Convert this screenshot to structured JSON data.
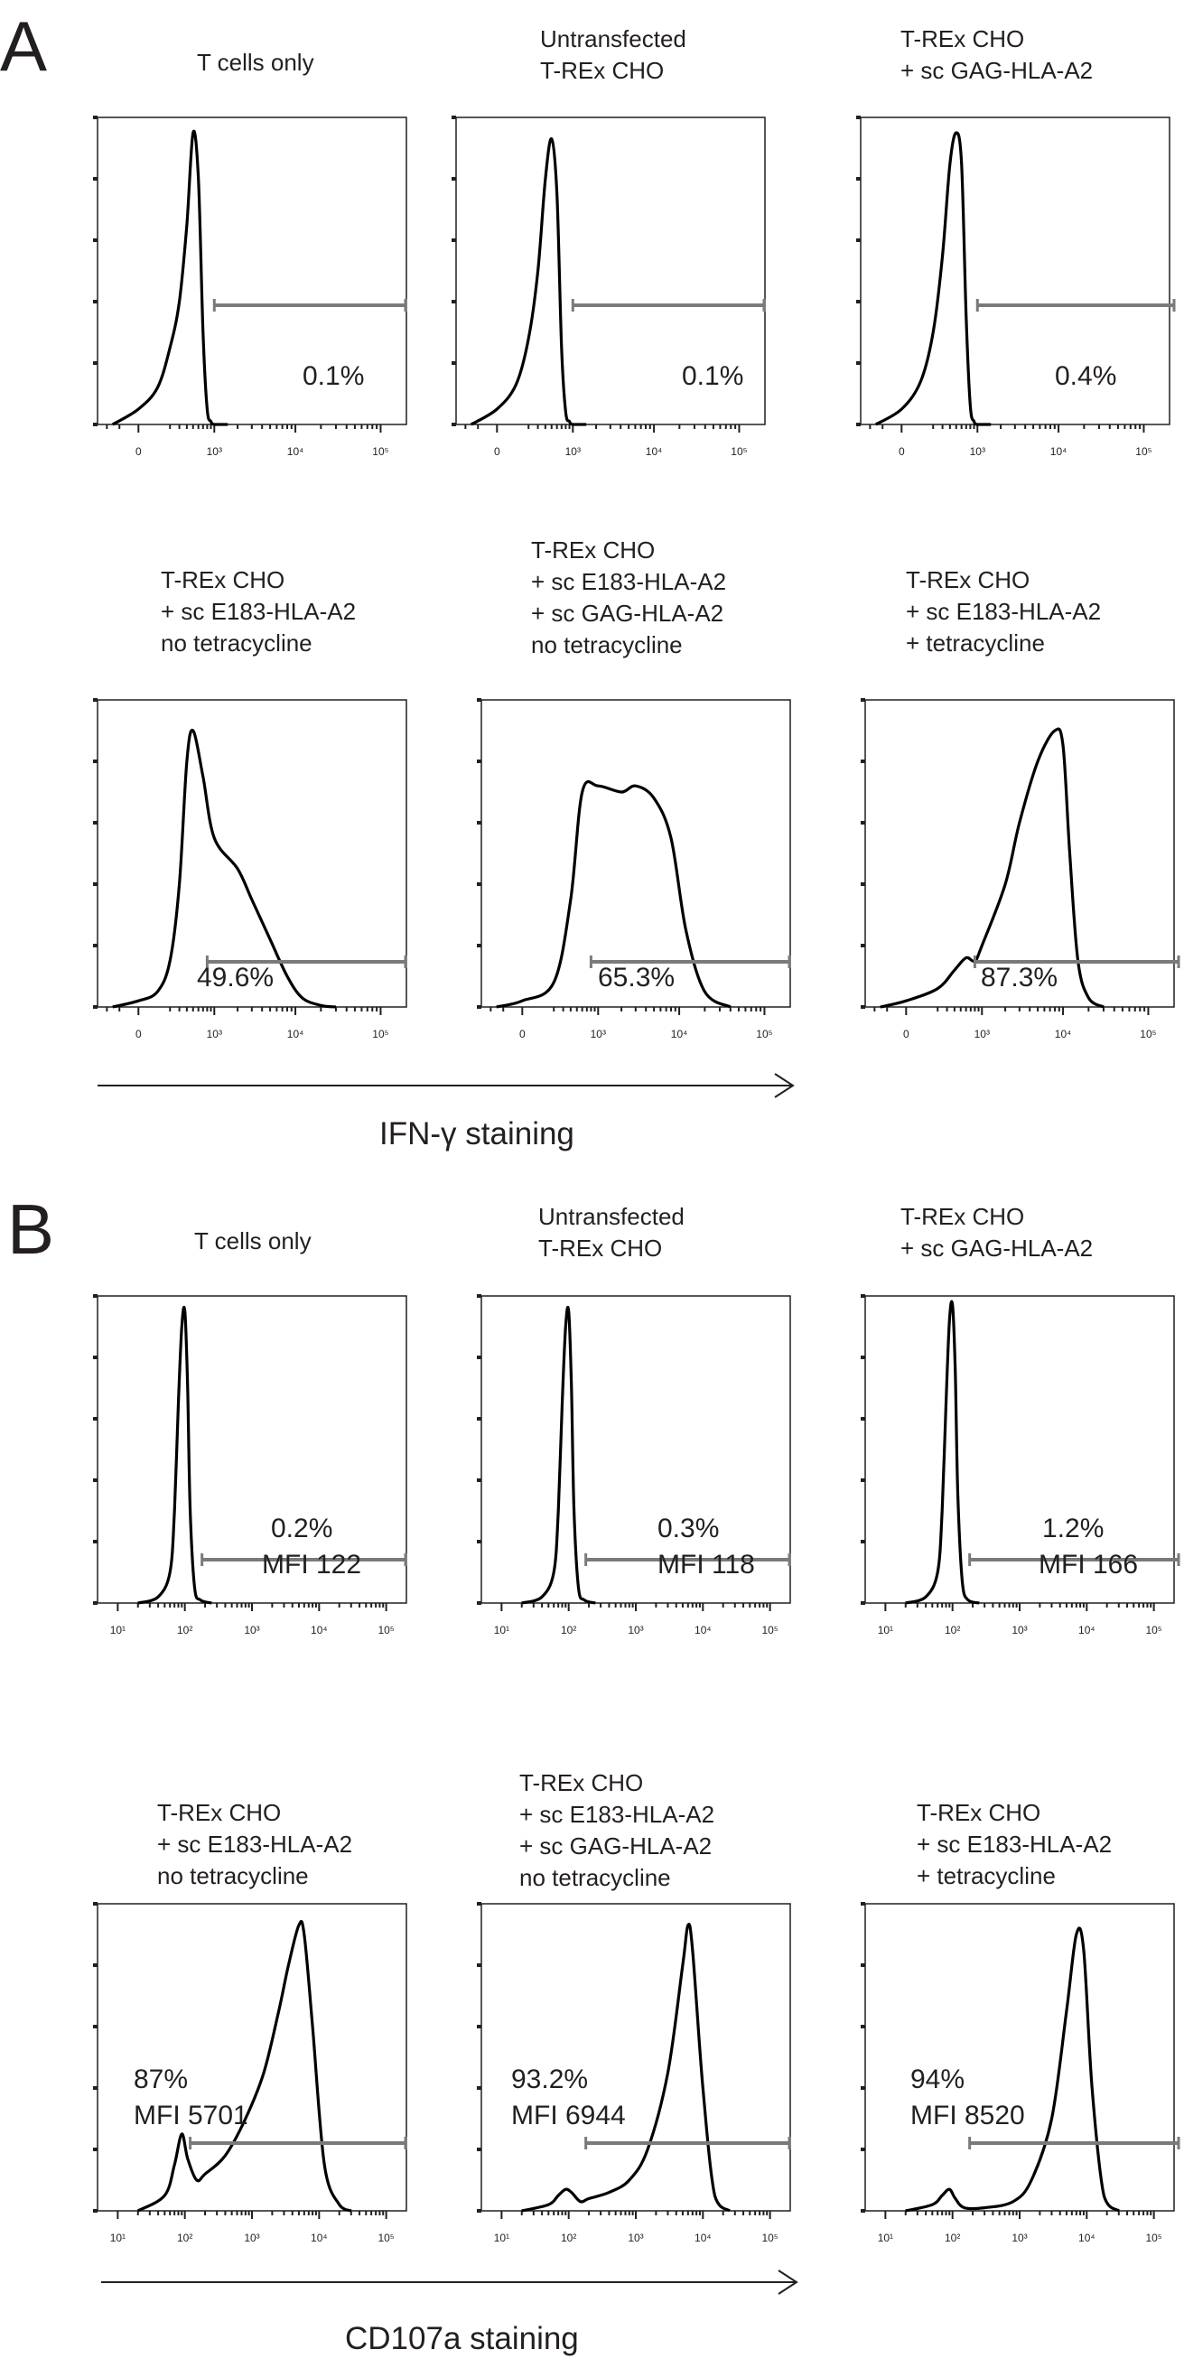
{
  "panels": [
    {
      "letter": "A",
      "axis_label": "IFN-γ staining",
      "x_ticks": [
        "0",
        "10³",
        "10⁴",
        "10⁵"
      ],
      "plots": [
        {
          "title": [
            "T cells only"
          ],
          "stats": [
            "0.1%"
          ]
        },
        {
          "title": [
            "Untransfected",
            "T-REx CHO"
          ],
          "stats": [
            "0.1%"
          ]
        },
        {
          "title": [
            "T-REx CHO",
            "+ sc GAG-HLA-A2"
          ],
          "stats": [
            "0.4%"
          ]
        },
        {
          "title": [
            "T-REx CHO",
            "+ sc E183-HLA-A2",
            "no tetracycline"
          ],
          "stats": [
            "49.6%"
          ]
        },
        {
          "title": [
            "T-REx CHO",
            "+ sc E183-HLA-A2",
            "+ sc GAG-HLA-A2",
            "no tetracycline"
          ],
          "stats": [
            "65.3%"
          ]
        },
        {
          "title": [
            "T-REx CHO",
            "+ sc E183-HLA-A2",
            "+ tetracycline"
          ],
          "stats": [
            "87.3%"
          ]
        }
      ]
    },
    {
      "letter": "B",
      "axis_label": "CD107a staining",
      "x_ticks": [
        "10¹",
        "10²",
        "10³",
        "10⁴",
        "10⁵"
      ],
      "plots": [
        {
          "title": [
            "T cells only"
          ],
          "stats": [
            "0.2%",
            "MFI 122"
          ]
        },
        {
          "title": [
            "Untransfected",
            "T-REx CHO"
          ],
          "stats": [
            "0.3%",
            "MFI 118"
          ]
        },
        {
          "title": [
            "T-REx CHO",
            "+ sc GAG-HLA-A2"
          ],
          "stats": [
            "1.2%",
            "MFI 166"
          ]
        },
        {
          "title": [
            "T-REx CHO",
            "+ sc E183-HLA-A2",
            "no tetracycline"
          ],
          "stats": [
            "87%",
            "MFI 5701"
          ]
        },
        {
          "title": [
            "T-REx CHO",
            "+ sc E183-HLA-A2",
            "+ sc GAG-HLA-A2",
            "no tetracycline"
          ],
          "stats": [
            "93.2%",
            "MFI 6944"
          ]
        },
        {
          "title": [
            "T-REx CHO",
            "+ sc E183-HLA-A2",
            "+ tetracycline"
          ],
          "stats": [
            "94%",
            "MFI 8520"
          ]
        }
      ]
    }
  ],
  "chart_data": [
    {
      "type": "area",
      "panel": "A",
      "title": "T cells only",
      "xlabel": "IFN-γ staining",
      "x_scale": "biexponential",
      "xlim": [
        -300,
        200000
      ],
      "ylim": [
        0,
        1
      ],
      "gate": {
        "start": 1000,
        "end": 200000,
        "label": "0.1%"
      },
      "x": [
        -150,
        0,
        100,
        200,
        300,
        400,
        500,
        600,
        700,
        800,
        900,
        1000,
        1500
      ],
      "y": [
        0,
        0.05,
        0.12,
        0.25,
        0.4,
        0.65,
        0.95,
        0.8,
        0.3,
        0.05,
        0.01,
        0,
        0
      ]
    },
    {
      "type": "area",
      "panel": "A",
      "title": "Untransfected T-REx CHO",
      "xlabel": "IFN-γ staining",
      "x_scale": "biexponential",
      "xlim": [
        -300,
        200000
      ],
      "ylim": [
        0,
        1
      ],
      "gate": {
        "start": 1000,
        "end": 200000,
        "label": "0.1%"
      },
      "x": [
        -150,
        0,
        100,
        200,
        300,
        400,
        500,
        600,
        700,
        800,
        900,
        1000,
        1500
      ],
      "y": [
        0,
        0.05,
        0.13,
        0.28,
        0.5,
        0.8,
        0.93,
        0.75,
        0.25,
        0.04,
        0.01,
        0,
        0
      ]
    },
    {
      "type": "area",
      "panel": "A",
      "title": "T-REx CHO + sc GAG-HLA-A2",
      "xlabel": "IFN-γ staining",
      "x_scale": "biexponential",
      "xlim": [
        -300,
        200000
      ],
      "ylim": [
        0,
        1
      ],
      "gate": {
        "start": 1000,
        "end": 200000,
        "label": "0.4%"
      },
      "x": [
        -150,
        0,
        100,
        200,
        300,
        400,
        500,
        600,
        700,
        800,
        900,
        1000,
        1500
      ],
      "y": [
        0,
        0.05,
        0.14,
        0.3,
        0.55,
        0.85,
        0.95,
        0.85,
        0.35,
        0.06,
        0.01,
        0,
        0
      ]
    },
    {
      "type": "area",
      "panel": "A",
      "title": "T-REx CHO + sc E183-HLA-A2 no tetracycline",
      "xlabel": "IFN-γ staining",
      "x_scale": "biexponential",
      "xlim": [
        -300,
        200000
      ],
      "ylim": [
        0,
        1
      ],
      "gate": {
        "start": 800,
        "end": 200000,
        "label": "49.6%"
      },
      "x": [
        -150,
        0,
        100,
        200,
        300,
        400,
        500,
        700,
        1000,
        2000,
        3000,
        5000,
        8000,
        12000,
        20000,
        30000
      ],
      "y": [
        0,
        0.02,
        0.05,
        0.15,
        0.4,
        0.8,
        0.9,
        0.75,
        0.55,
        0.45,
        0.35,
        0.22,
        0.1,
        0.03,
        0.005,
        0
      ]
    },
    {
      "type": "area",
      "panel": "A",
      "title": "T-REx CHO + sc E183-HLA-A2 + sc GAG-HLA-A2 no tetracycline",
      "xlabel": "IFN-γ staining",
      "x_scale": "biexponential",
      "xlim": [
        -300,
        200000
      ],
      "ylim": [
        0,
        1
      ],
      "gate": {
        "start": 800,
        "end": 200000,
        "label": "65.3%"
      },
      "x": [
        -150,
        0,
        200,
        400,
        600,
        1000,
        2000,
        3000,
        5000,
        8000,
        12000,
        20000,
        40000
      ],
      "y": [
        0,
        0.02,
        0.08,
        0.35,
        0.7,
        0.72,
        0.7,
        0.72,
        0.68,
        0.55,
        0.25,
        0.05,
        0
      ]
    },
    {
      "type": "area",
      "panel": "A",
      "title": "T-REx CHO + sc E183-HLA-A2 + tetracycline",
      "xlabel": "IFN-γ staining",
      "x_scale": "biexponential",
      "xlim": [
        -300,
        200000
      ],
      "ylim": [
        0,
        1
      ],
      "gate": {
        "start": 800,
        "end": 200000,
        "label": "87.3%"
      },
      "x": [
        -150,
        0,
        200,
        400,
        600,
        800,
        1000,
        2000,
        3000,
        5000,
        8000,
        10000,
        12000,
        15000,
        20000,
        30000
      ],
      "y": [
        0,
        0.02,
        0.06,
        0.12,
        0.16,
        0.15,
        0.2,
        0.4,
        0.6,
        0.8,
        0.9,
        0.85,
        0.5,
        0.15,
        0.03,
        0
      ]
    },
    {
      "type": "area",
      "panel": "B",
      "title": "T cells only",
      "xlabel": "CD107a staining",
      "x_scale": "log",
      "xlim": [
        5,
        200000
      ],
      "ylim": [
        0,
        1
      ],
      "gate": {
        "start": 180,
        "end": 200000,
        "label": "0.2%",
        "mfi": 122
      },
      "x": [
        20,
        40,
        60,
        70,
        80,
        90,
        100,
        110,
        120,
        140,
        170,
        250
      ],
      "y": [
        0,
        0.02,
        0.1,
        0.3,
        0.65,
        0.9,
        0.95,
        0.7,
        0.3,
        0.05,
        0.01,
        0
      ]
    },
    {
      "type": "area",
      "panel": "B",
      "title": "Untransfected T-REx CHO",
      "xlabel": "CD107a staining",
      "x_scale": "log",
      "xlim": [
        5,
        200000
      ],
      "ylim": [
        0,
        1
      ],
      "gate": {
        "start": 180,
        "end": 200000,
        "label": "0.3%",
        "mfi": 118
      },
      "x": [
        20,
        40,
        60,
        70,
        80,
        90,
        100,
        110,
        120,
        140,
        170,
        250
      ],
      "y": [
        0,
        0.02,
        0.1,
        0.3,
        0.65,
        0.9,
        0.95,
        0.7,
        0.3,
        0.05,
        0.01,
        0
      ]
    },
    {
      "type": "area",
      "panel": "B",
      "title": "T-REx CHO + sc GAG-HLA-A2",
      "xlabel": "CD107a staining",
      "x_scale": "log",
      "xlim": [
        5,
        200000
      ],
      "ylim": [
        0,
        1
      ],
      "gate": {
        "start": 180,
        "end": 200000,
        "label": "1.2%",
        "mfi": 166
      },
      "x": [
        20,
        40,
        60,
        70,
        80,
        90,
        100,
        110,
        120,
        140,
        170,
        250
      ],
      "y": [
        0,
        0.02,
        0.1,
        0.3,
        0.65,
        0.92,
        0.97,
        0.75,
        0.35,
        0.07,
        0.01,
        0
      ]
    },
    {
      "type": "area",
      "panel": "B",
      "title": "T-REx CHO + sc E183-HLA-A2 no tetracycline",
      "xlabel": "CD107a staining",
      "x_scale": "log",
      "xlim": [
        5,
        200000
      ],
      "ylim": [
        0,
        1
      ],
      "gate": {
        "start": 120,
        "end": 200000,
        "label": "87%",
        "mfi": 5701
      },
      "x": [
        20,
        50,
        70,
        90,
        110,
        150,
        200,
        400,
        800,
        1500,
        2500,
        3500,
        5000,
        6000,
        8000,
        12000,
        20000,
        30000
      ],
      "y": [
        0,
        0.05,
        0.15,
        0.25,
        0.17,
        0.1,
        0.12,
        0.18,
        0.3,
        0.45,
        0.65,
        0.8,
        0.93,
        0.9,
        0.6,
        0.15,
        0.02,
        0
      ]
    },
    {
      "type": "area",
      "panel": "B",
      "title": "T-REx CHO + sc E183-HLA-A2 + sc GAG-HLA-A2 no tetracycline",
      "xlabel": "CD107a staining",
      "x_scale": "log",
      "xlim": [
        5,
        200000
      ],
      "ylim": [
        0,
        1
      ],
      "gate": {
        "start": 180,
        "end": 200000,
        "label": "93.2%",
        "mfi": 6944
      },
      "x": [
        20,
        50,
        70,
        90,
        110,
        150,
        200,
        400,
        800,
        1500,
        3000,
        5000,
        6000,
        7000,
        10000,
        15000,
        25000
      ],
      "y": [
        0,
        0.02,
        0.05,
        0.07,
        0.06,
        0.03,
        0.04,
        0.06,
        0.1,
        0.2,
        0.45,
        0.8,
        0.93,
        0.85,
        0.4,
        0.05,
        0
      ]
    },
    {
      "type": "area",
      "panel": "B",
      "title": "T-REx CHO + sc E183-HLA-A2 + tetracycline",
      "xlabel": "CD107a staining",
      "x_scale": "log",
      "xlim": [
        5,
        200000
      ],
      "ylim": [
        0,
        1
      ],
      "gate": {
        "start": 180,
        "end": 200000,
        "label": "94%",
        "mfi": 8520
      },
      "x": [
        20,
        50,
        70,
        90,
        110,
        150,
        300,
        800,
        1500,
        3000,
        5000,
        7000,
        9000,
        12000,
        18000,
        30000
      ],
      "y": [
        0,
        0.02,
        0.05,
        0.07,
        0.04,
        0.01,
        0.01,
        0.03,
        0.1,
        0.3,
        0.65,
        0.9,
        0.85,
        0.4,
        0.05,
        0
      ]
    }
  ]
}
